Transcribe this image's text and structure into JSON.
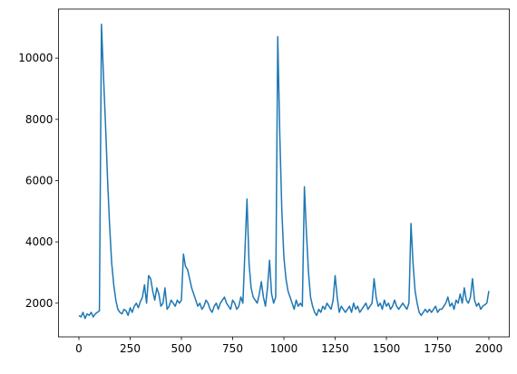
{
  "chart_data": {
    "type": "line",
    "color": "#1f77b4",
    "x": [
      0,
      10,
      20,
      30,
      40,
      50,
      60,
      70,
      80,
      90,
      100,
      110,
      120,
      130,
      140,
      150,
      160,
      170,
      180,
      190,
      200,
      210,
      220,
      230,
      240,
      250,
      260,
      270,
      280,
      290,
      300,
      310,
      320,
      330,
      340,
      350,
      360,
      370,
      380,
      390,
      400,
      410,
      420,
      430,
      440,
      450,
      460,
      470,
      480,
      490,
      500,
      510,
      520,
      530,
      540,
      550,
      560,
      570,
      580,
      590,
      600,
      610,
      620,
      630,
      640,
      650,
      660,
      670,
      680,
      690,
      700,
      710,
      720,
      730,
      740,
      750,
      760,
      770,
      780,
      790,
      800,
      810,
      820,
      830,
      840,
      850,
      860,
      870,
      880,
      890,
      900,
      910,
      920,
      930,
      940,
      950,
      960,
      970,
      980,
      990,
      1000,
      1010,
      1020,
      1030,
      1040,
      1050,
      1060,
      1070,
      1080,
      1090,
      1100,
      1110,
      1120,
      1130,
      1140,
      1150,
      1160,
      1170,
      1180,
      1190,
      1200,
      1210,
      1220,
      1230,
      1240,
      1250,
      1260,
      1270,
      1280,
      1290,
      1300,
      1310,
      1320,
      1330,
      1340,
      1350,
      1360,
      1370,
      1380,
      1390,
      1400,
      1410,
      1420,
      1430,
      1440,
      1450,
      1460,
      1470,
      1480,
      1490,
      1500,
      1510,
      1520,
      1530,
      1540,
      1550,
      1560,
      1570,
      1580,
      1590,
      1600,
      1610,
      1620,
      1630,
      1640,
      1650,
      1660,
      1670,
      1680,
      1690,
      1700,
      1710,
      1720,
      1730,
      1740,
      1750,
      1760,
      1770,
      1780,
      1790,
      1800,
      1810,
      1820,
      1830,
      1840,
      1850,
      1860,
      1870,
      1880,
      1890,
      1900,
      1910,
      1920,
      1930,
      1940,
      1950,
      1960,
      1970,
      1980,
      1990,
      2000
    ],
    "values": [
      1600,
      1550,
      1700,
      1500,
      1650,
      1600,
      1700,
      1550,
      1650,
      1700,
      1750,
      11100,
      9400,
      7800,
      6000,
      4500,
      3300,
      2600,
      2100,
      1800,
      1700,
      1650,
      1800,
      1750,
      1600,
      1850,
      1700,
      1900,
      2000,
      1850,
      2050,
      2200,
      2600,
      2000,
      2900,
      2800,
      2400,
      2100,
      2500,
      2300,
      1900,
      2000,
      2500,
      1800,
      1900,
      2100,
      2000,
      1900,
      2100,
      2000,
      2100,
      3600,
      3200,
      3100,
      2800,
      2500,
      2300,
      2100,
      1900,
      2000,
      1800,
      1900,
      2100,
      2000,
      1800,
      1700,
      1900,
      2000,
      1800,
      2000,
      2100,
      2200,
      2000,
      1900,
      1800,
      2100,
      2000,
      1800,
      1900,
      2200,
      2000,
      3700,
      5400,
      3300,
      2500,
      2200,
      2100,
      2000,
      2300,
      2700,
      2200,
      1900,
      2500,
      3400,
      2300,
      2000,
      2200,
      10700,
      7500,
      5000,
      3500,
      2800,
      2400,
      2200,
      2000,
      1800,
      2100,
      1900,
      2000,
      1900,
      5800,
      4300,
      3000,
      2200,
      1900,
      1700,
      1600,
      1800,
      1700,
      1900,
      1800,
      2000,
      1900,
      1800,
      2100,
      2900,
      2200,
      1700,
      1900,
      1800,
      1700,
      1800,
      1900,
      1700,
      2000,
      1800,
      1900,
      1700,
      1800,
      1900,
      2000,
      1800,
      1900,
      2000,
      2800,
      2200,
      1900,
      2000,
      1800,
      2100,
      1900,
      2000,
      1800,
      1900,
      2100,
      1900,
      1800,
      1900,
      2000,
      1900,
      1800,
      2000,
      4600,
      3300,
      2400,
      2000,
      1700,
      1600,
      1700,
      1800,
      1700,
      1800,
      1700,
      1800,
      1900,
      1700,
      1800,
      1800,
      1900,
      2000,
      2200,
      1900,
      2000,
      1800,
      2100,
      2000,
      2300,
      2000,
      2500,
      2100,
      2000,
      2200,
      2800,
      2100,
      1900,
      2000,
      1800,
      1900,
      1950,
      2000,
      2400
    ],
    "xlim": [
      -100,
      2100
    ],
    "ylim": [
      900,
      11600
    ],
    "xticks": [
      0,
      250,
      500,
      750,
      1000,
      1250,
      1500,
      1750,
      2000
    ],
    "yticks": [
      2000,
      4000,
      6000,
      8000,
      10000
    ]
  }
}
